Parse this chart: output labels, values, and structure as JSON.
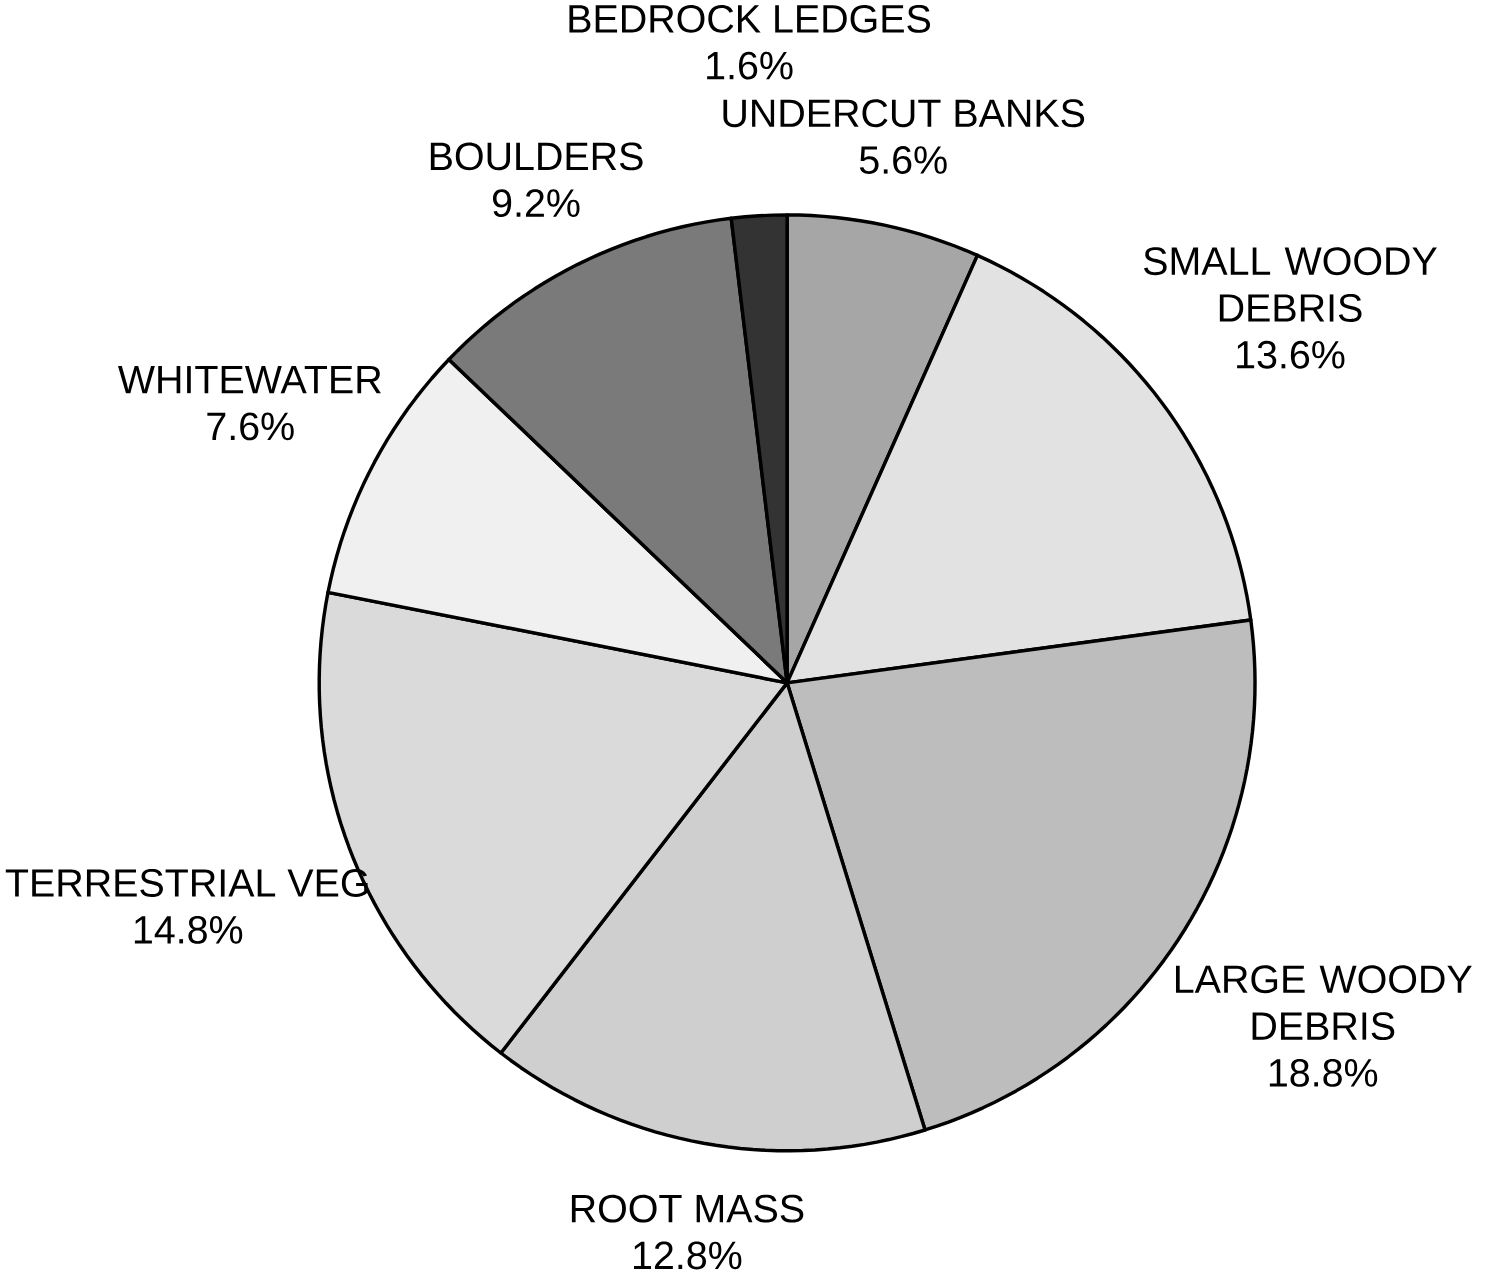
{
  "chart_data": {
    "type": "pie",
    "categories": [
      "UNDERCUT BANKS",
      "SMALL WOODY DEBRIS",
      "LARGE WOODY DEBRIS",
      "ROOT MASS",
      "TERRESTRIAL VEG",
      "WHITEWATER",
      "BOULDERS",
      "BEDROCK LEDGES"
    ],
    "values": [
      5.6,
      13.6,
      18.8,
      12.8,
      14.8,
      7.6,
      9.2,
      1.6
    ],
    "value_labels": [
      "5.6%",
      "13.6%",
      "18.8%",
      "12.8%",
      "14.8%",
      "7.6%",
      "9.2%",
      "1.6%"
    ],
    "colors": [
      "#a6a6a6",
      "#e2e2e2",
      "#bdbdbd",
      "#cfcfcf",
      "#dadada",
      "#f0f0f0",
      "#7a7a7a",
      "#333333"
    ]
  }
}
